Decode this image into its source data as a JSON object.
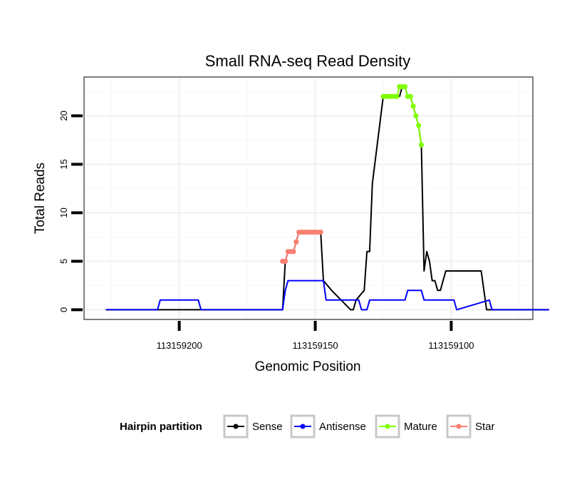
{
  "chart_data": {
    "type": "line",
    "title": "Small RNA-seq Read Density",
    "xlabel": "Genomic Position",
    "ylabel": "Total Reads",
    "xlim": [
      113159235,
      113159070
    ],
    "ylim": [
      -1,
      24
    ],
    "x_reversed": true,
    "x_ticks": [
      113159200,
      113159150,
      113159100
    ],
    "x_tick_labels": [
      "113159200",
      "113159150",
      "113159100"
    ],
    "y_ticks": [
      0,
      5,
      10,
      15,
      20
    ],
    "y_tick_labels": [
      "0",
      "5",
      "10",
      "15",
      "20"
    ],
    "grid": true,
    "legend": {
      "title": "Hairpin partition",
      "position": "bottom",
      "entries": [
        {
          "label": "Sense",
          "color": "#000000"
        },
        {
          "label": "Antisense",
          "color": "#0000FF"
        },
        {
          "label": "Mature",
          "color": "#7FFF00"
        },
        {
          "label": "Star",
          "color": "#FA8072"
        }
      ]
    },
    "series": [
      {
        "name": "Sense",
        "color": "#000000",
        "x": [
          113159227,
          113159162,
          113159161,
          113159160,
          113159159,
          113159158,
          113159157,
          113159156,
          113159154,
          113159153,
          113159152,
          113159148,
          113159147,
          113159144,
          113159137,
          113159136,
          113159135,
          113159132,
          113159131,
          113159130,
          113159129,
          113159125,
          113159124,
          113159123,
          113159122,
          113159120,
          113159119,
          113159118,
          113159117,
          113159116,
          113159115,
          113159114,
          113159113,
          113159112,
          113159111,
          113159110,
          113159109,
          113159108,
          113159107,
          113159106,
          113159105,
          113159104,
          113159103,
          113159102,
          113159101,
          113159089,
          113159088,
          113159087,
          113159064
        ],
        "values": [
          0,
          0,
          5,
          6,
          6,
          6,
          7,
          8,
          8,
          8,
          8,
          8,
          3,
          2,
          0,
          0,
          1,
          2,
          6,
          6,
          13,
          22,
          22,
          22,
          22,
          22,
          22,
          23,
          23,
          22,
          22,
          21,
          20,
          19,
          17,
          4,
          6,
          5,
          3,
          3,
          2,
          2,
          3,
          4,
          4,
          4,
          2,
          0,
          0
        ]
      },
      {
        "name": "Antisense",
        "color": "#0000FF",
        "x": [
          113159227,
          113159208,
          113159207,
          113159193,
          113159192,
          113159162,
          113159161,
          113159160,
          113159147,
          113159146,
          113159134,
          113159133,
          113159131,
          113159130,
          113159117,
          113159116,
          113159111,
          113159110,
          113159099,
          113159098,
          113159086,
          113159085,
          113159064
        ],
        "values": [
          0,
          0,
          1,
          1,
          0,
          0,
          2,
          3,
          3,
          1,
          1,
          0,
          0,
          1,
          1,
          2,
          2,
          1,
          1,
          0,
          1,
          0,
          0
        ]
      },
      {
        "name": "Mature",
        "color": "#7FFF00",
        "points": true,
        "x": [
          113159125,
          113159124,
          113159123,
          113159122,
          113159121,
          113159120,
          113159119,
          113159118,
          113159117,
          113159116,
          113159115,
          113159114,
          113159113,
          113159112,
          113159111
        ],
        "values": [
          22,
          22,
          22,
          22,
          22,
          22,
          23,
          23,
          23,
          22,
          22,
          21,
          20,
          19,
          17
        ]
      },
      {
        "name": "Star",
        "color": "#FA8072",
        "points": true,
        "x": [
          113159162,
          113159161,
          113159160,
          113159159,
          113159158,
          113159157,
          113159156,
          113159155,
          113159154,
          113159153,
          113159152,
          113159151,
          113159150,
          113159149,
          113159148
        ],
        "values": [
          5,
          5,
          6,
          6,
          6,
          7,
          8,
          8,
          8,
          8,
          8,
          8,
          8,
          8,
          8
        ]
      }
    ]
  }
}
